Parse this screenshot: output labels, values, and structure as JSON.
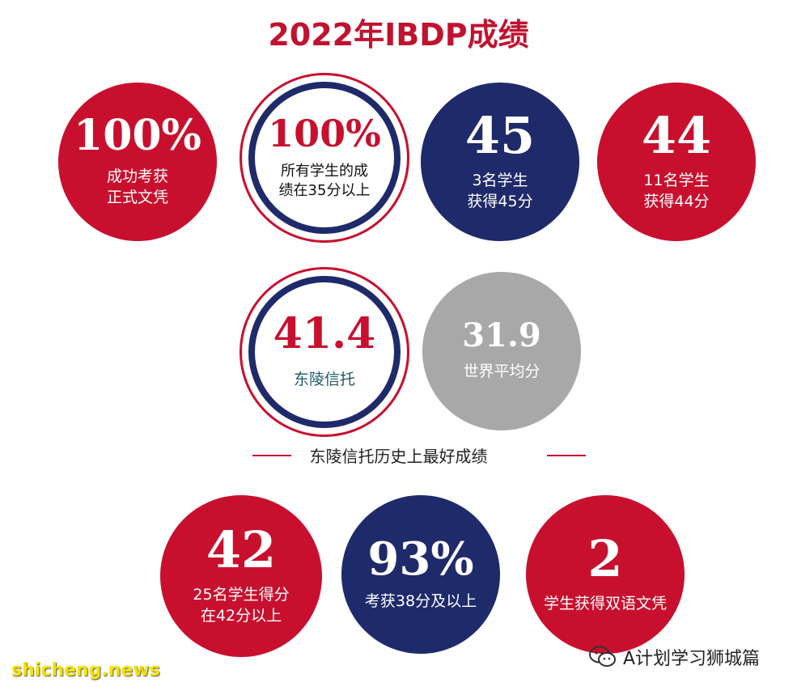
{
  "title": "2022年IBDP成绩",
  "row1": [
    {
      "value": "100%",
      "line1": "成功考获",
      "line2": "正式文凭"
    },
    {
      "value": "100%",
      "line1": "所有学生的成",
      "line2": "绩在35分以上"
    },
    {
      "value": "45",
      "line1": "3名学生",
      "line2": "获得45分"
    },
    {
      "value": "44",
      "line1": "11名学生",
      "line2": "获得44分"
    }
  ],
  "row2": [
    {
      "value": "41.4",
      "line1": "东陵信托"
    },
    {
      "value": "31.9",
      "line1": "世界平均分"
    }
  ],
  "divider_text": "东陵信托历史上最好成绩",
  "row3": [
    {
      "value": "42",
      "line1": "25名学生得分",
      "line2": "在42分以上"
    },
    {
      "value": "93%",
      "line1": "考获38分及以上"
    },
    {
      "value": "2",
      "line1": "学生获得双语文凭"
    }
  ],
  "watermark": "shicheng.news",
  "wechat_label": "A计划学习狮城篇",
  "colors": {
    "red": "#c8102e",
    "navy": "#1f2a6b",
    "gray": "#a8a8a8"
  }
}
